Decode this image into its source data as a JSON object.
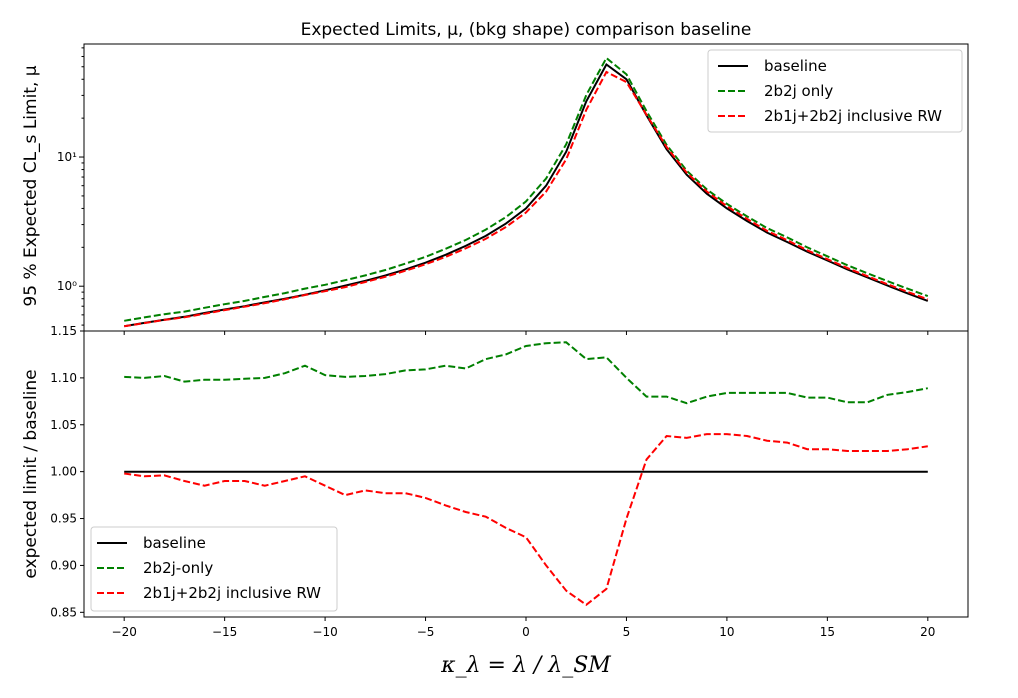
{
  "chart_data": [
    {
      "type": "line",
      "title": "Expected Limits, μ, (bkg shape) comparison baseline",
      "ylabel": "95 % Expected CL_s Limit, μ",
      "yscale": "log",
      "ylim": [
        0.45,
        75
      ],
      "yticks": [
        {
          "value": 1,
          "label": "10⁰"
        },
        {
          "value": 10,
          "label": "10¹"
        }
      ],
      "legend_position": "top-right",
      "x": [
        -20,
        -19,
        -18,
        -17,
        -16,
        -15,
        -14,
        -13,
        -12,
        -11,
        -10,
        -9,
        -8,
        -7,
        -6,
        -5,
        -4,
        -3,
        -2,
        -1,
        0,
        1,
        2,
        3,
        4,
        5,
        6,
        7,
        8,
        9,
        10,
        11,
        12,
        13,
        14,
        15,
        16,
        17,
        18,
        19,
        20
      ],
      "series": [
        {
          "name": "baseline",
          "color": "#000000",
          "dash": "solid",
          "values": [
            0.49,
            0.52,
            0.55,
            0.58,
            0.62,
            0.66,
            0.7,
            0.75,
            0.8,
            0.86,
            0.93,
            1.01,
            1.1,
            1.21,
            1.35,
            1.52,
            1.75,
            2.05,
            2.45,
            3.05,
            4.0,
            6.0,
            11.0,
            27.0,
            52.0,
            40.0,
            21.0,
            11.5,
            7.3,
            5.2,
            4.0,
            3.2,
            2.6,
            2.2,
            1.85,
            1.58,
            1.35,
            1.17,
            1.01,
            0.88,
            0.77
          ]
        },
        {
          "name": "2b2j only",
          "color": "#008000",
          "dash": "dashed",
          "values": [
            0.54,
            0.573,
            0.607,
            0.636,
            0.681,
            0.725,
            0.769,
            0.826,
            0.885,
            0.959,
            1.026,
            1.112,
            1.212,
            1.336,
            1.496,
            1.686,
            1.948,
            2.279,
            2.741,
            3.429,
            4.536,
            6.821,
            12.55,
            30.24,
            58.44,
            43.6,
            22.68,
            12.42,
            7.833,
            5.616,
            4.336,
            3.469,
            2.819,
            2.385,
            1.996,
            1.705,
            1.451,
            1.258,
            1.093,
            0.957,
            0.838
          ]
        },
        {
          "name": "2b1j+2b2j inclusive RW",
          "color": "#ff0000",
          "dash": "dashed",
          "values": [
            0.489,
            0.518,
            0.548,
            0.574,
            0.611,
            0.653,
            0.694,
            0.739,
            0.792,
            0.855,
            0.915,
            0.985,
            1.078,
            1.183,
            1.318,
            1.478,
            1.686,
            1.962,
            2.328,
            2.871,
            3.72,
            5.4,
            9.6,
            23.22,
            45.5,
            38.0,
            21.27,
            11.96,
            7.57,
            5.41,
            4.16,
            3.32,
            2.68,
            2.27,
            1.896,
            1.618,
            1.38,
            1.195,
            1.034,
            0.903,
            0.791
          ]
        }
      ]
    },
    {
      "type": "line",
      "xlabel": "κ_λ = λ / λ_SM",
      "ylabel": "expected limit / baseline",
      "xlim": [
        -22,
        22
      ],
      "ylim": [
        0.845,
        1.15
      ],
      "xticks": [
        -20,
        -15,
        -10,
        -5,
        0,
        5,
        10,
        15,
        20
      ],
      "yticks": [
        0.85,
        0.9,
        0.95,
        1.0,
        1.05,
        1.1,
        1.15
      ],
      "legend_position": "lower-left",
      "x": [
        -20,
        -19,
        -18,
        -17,
        -16,
        -15,
        -14,
        -13,
        -12,
        -11,
        -10,
        -9,
        -8,
        -7,
        -6,
        -5,
        -4,
        -3,
        -2,
        -1,
        0,
        1,
        2,
        3,
        4,
        5,
        6,
        7,
        8,
        9,
        10,
        11,
        12,
        13,
        14,
        15,
        16,
        17,
        18,
        19,
        20
      ],
      "series": [
        {
          "name": "baseline",
          "color": "#000000",
          "dash": "solid",
          "values": [
            1.0,
            1.0,
            1.0,
            1.0,
            1.0,
            1.0,
            1.0,
            1.0,
            1.0,
            1.0,
            1.0,
            1.0,
            1.0,
            1.0,
            1.0,
            1.0,
            1.0,
            1.0,
            1.0,
            1.0,
            1.0,
            1.0,
            1.0,
            1.0,
            1.0,
            1.0,
            1.0,
            1.0,
            1.0,
            1.0,
            1.0,
            1.0,
            1.0,
            1.0,
            1.0,
            1.0,
            1.0,
            1.0,
            1.0,
            1.0,
            1.0
          ]
        },
        {
          "name": "2b2j-only",
          "color": "#008000",
          "dash": "dashed",
          "values": [
            1.101,
            1.1,
            1.102,
            1.096,
            1.098,
            1.098,
            1.099,
            1.1,
            1.105,
            1.113,
            1.103,
            1.101,
            1.102,
            1.104,
            1.108,
            1.109,
            1.113,
            1.11,
            1.12,
            1.125,
            1.134,
            1.137,
            1.138,
            1.12,
            1.122,
            1.1,
            1.08,
            1.08,
            1.073,
            1.08,
            1.084,
            1.084,
            1.084,
            1.084,
            1.079,
            1.079,
            1.074,
            1.074,
            1.082,
            1.085,
            1.089
          ]
        },
        {
          "name": "2b1j+2b2j inclusive RW",
          "color": "#ff0000",
          "dash": "dashed",
          "values": [
            0.998,
            0.995,
            0.996,
            0.99,
            0.985,
            0.99,
            0.99,
            0.985,
            0.99,
            0.995,
            0.985,
            0.975,
            0.98,
            0.977,
            0.977,
            0.972,
            0.964,
            0.957,
            0.952,
            0.94,
            0.93,
            0.9,
            0.873,
            0.858,
            0.875,
            0.95,
            1.013,
            1.038,
            1.036,
            1.04,
            1.04,
            1.038,
            1.033,
            1.031,
            1.024,
            1.024,
            1.022,
            1.022,
            1.022,
            1.024,
            1.027
          ]
        }
      ]
    }
  ]
}
